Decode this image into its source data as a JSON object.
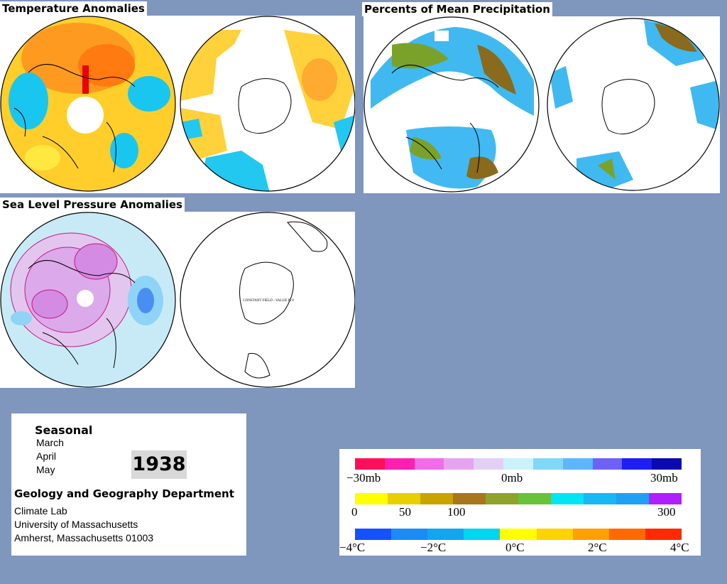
{
  "panels": {
    "temperature": {
      "title": "Temperature Anomalies"
    },
    "precipitation": {
      "title": "Percents of Mean Precipitation"
    },
    "pressure": {
      "title": "Sea Level Pressure Anomalies",
      "south_note": "CONSTANT FIELD - VALUE IS 0"
    }
  },
  "info": {
    "period_heading": "Seasonal",
    "months": [
      "March",
      "April",
      "May"
    ],
    "year": "1938",
    "department": "Geology and Geography Department",
    "lines": [
      "Climate Lab",
      "University of Massachusetts",
      "Amherst, Massachusetts 01003"
    ]
  },
  "legend": {
    "pressure": {
      "labels": [
        "−30mb",
        "0mb",
        "30mb"
      ],
      "colors": [
        "#ff0f5a",
        "#ff1fb0",
        "#f36be8",
        "#e6a3ef",
        "#e2d0f4",
        "#c9f2fb",
        "#7fd8f7",
        "#5cb7ff",
        "#6e61f7",
        "#1e1ef5",
        "#0a0ab0"
      ]
    },
    "precipitation": {
      "labels": [
        "0",
        "50",
        "100",
        "300"
      ],
      "colors": [
        "#ffff00",
        "#e8d000",
        "#c9a400",
        "#a8761d",
        "#8fa22c",
        "#68c23a",
        "#00e5f3",
        "#17b8f5",
        "#1fa0f5",
        "#b01fff"
      ]
    },
    "temperature": {
      "labels": [
        "−4°C",
        "−2°C",
        "0°C",
        "2°C",
        "4°C"
      ],
      "colors": [
        "#1451ff",
        "#1b8cf5",
        "#11a6f0",
        "#00d6f0",
        "#ffff00",
        "#ffd200",
        "#ff9f00",
        "#ff6a00",
        "#ff2a00"
      ]
    }
  }
}
